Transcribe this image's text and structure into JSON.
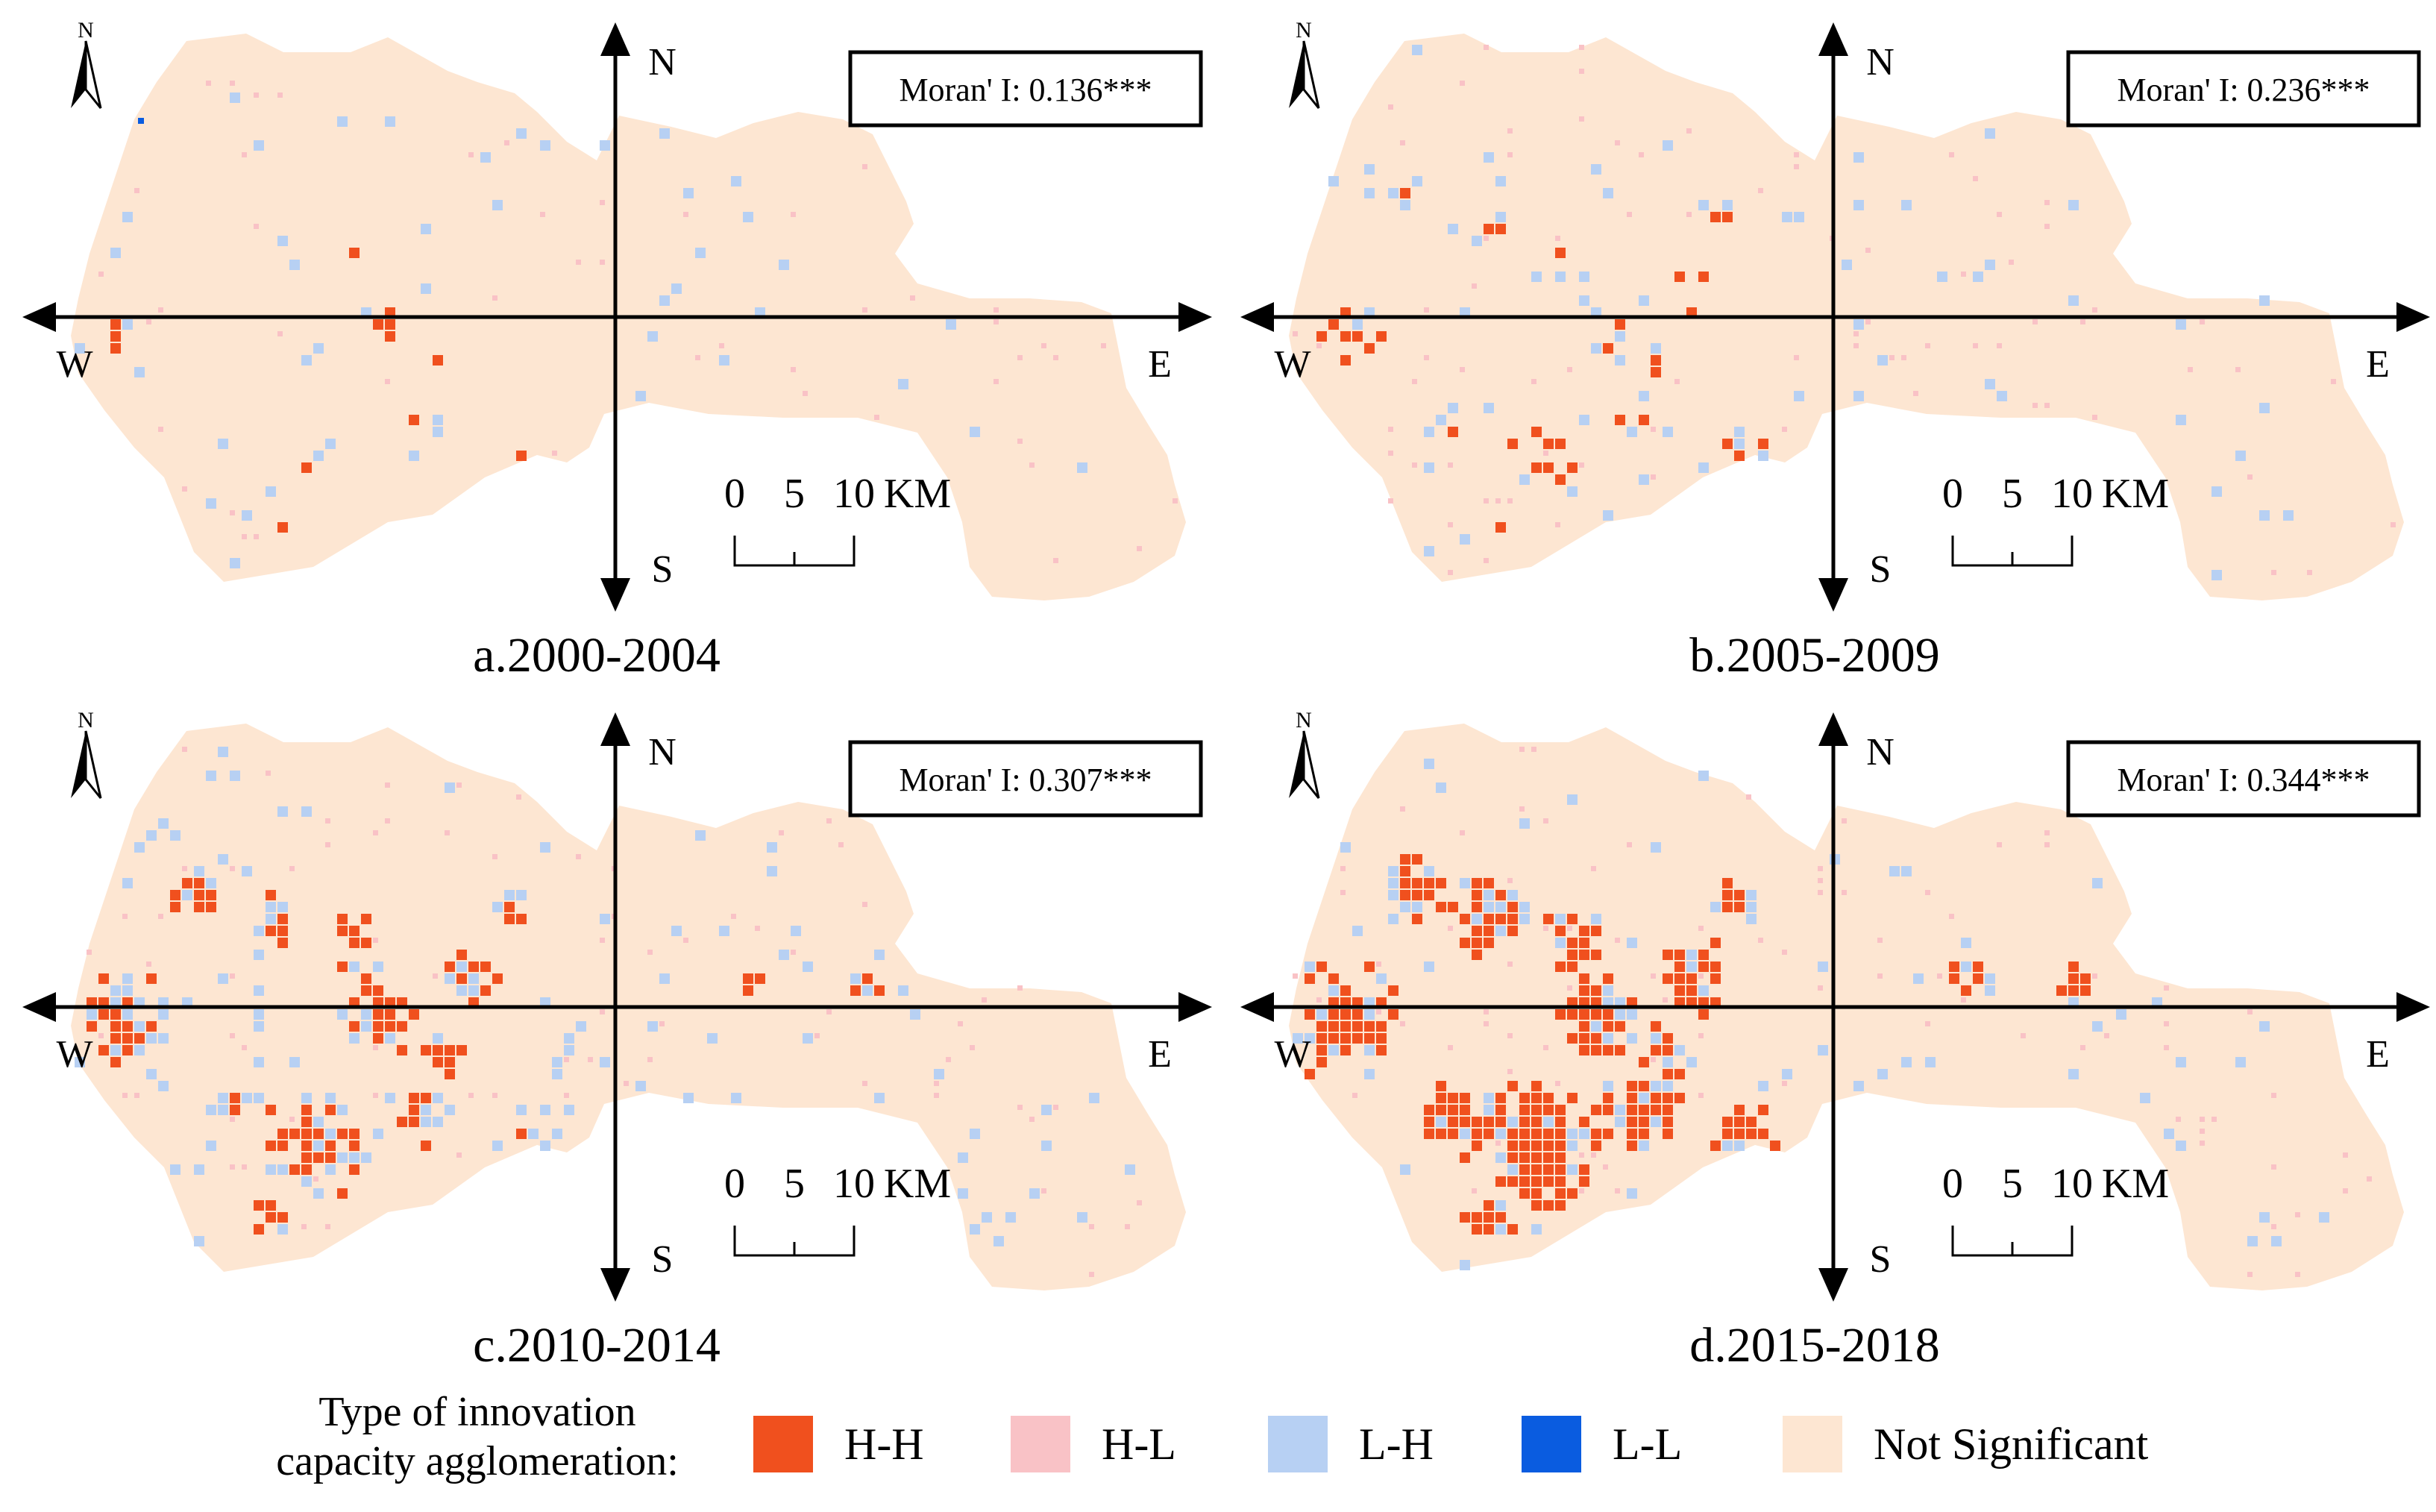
{
  "colors": {
    "HH": "#f0501e",
    "HL": "#f9c2c6",
    "LH": "#b7d0f3",
    "LL": "#0a5ce0",
    "NS": "#fde6d2"
  },
  "compass_letter": "N",
  "axis_labels": {
    "north": "N",
    "south": "S",
    "west": "W",
    "east": "E"
  },
  "scale_bar": {
    "ticks": [
      "0",
      "5",
      "10"
    ],
    "unit": "KM"
  },
  "panels": [
    {
      "id": "a",
      "caption": "a.2000-2004",
      "moran": "Moran' I: 0.136***",
      "intensity": {
        "HH": 0.012,
        "HL": 0.02,
        "LH": 0.03,
        "LL": 0.001
      }
    },
    {
      "id": "b",
      "caption": "b.2005-2009",
      "moran": "Moran' I: 0.236***",
      "intensity": {
        "HH": 0.03,
        "HL": 0.03,
        "LH": 0.04,
        "LL": 0.0
      }
    },
    {
      "id": "c",
      "caption": "c.2010-2014",
      "moran": "Moran' I: 0.307***",
      "intensity": {
        "HH": 0.09,
        "HL": 0.03,
        "LH": 0.06,
        "LL": 0.0
      }
    },
    {
      "id": "d",
      "caption": "d.2015-2018",
      "moran": "Moran' I: 0.344***",
      "intensity": {
        "HH": 0.13,
        "HL": 0.03,
        "LH": 0.05,
        "LL": 0.0
      }
    }
  ],
  "legend": {
    "title_line1": "Type of innovation",
    "title_line2": "capacity agglomeration:",
    "items": [
      {
        "key": "HH",
        "label": "H-H"
      },
      {
        "key": "HL",
        "label": "H-L"
      },
      {
        "key": "LH",
        "label": "L-H"
      },
      {
        "key": "LL",
        "label": "L-L"
      },
      {
        "key": "NS",
        "label": "Not Significant"
      }
    ]
  }
}
